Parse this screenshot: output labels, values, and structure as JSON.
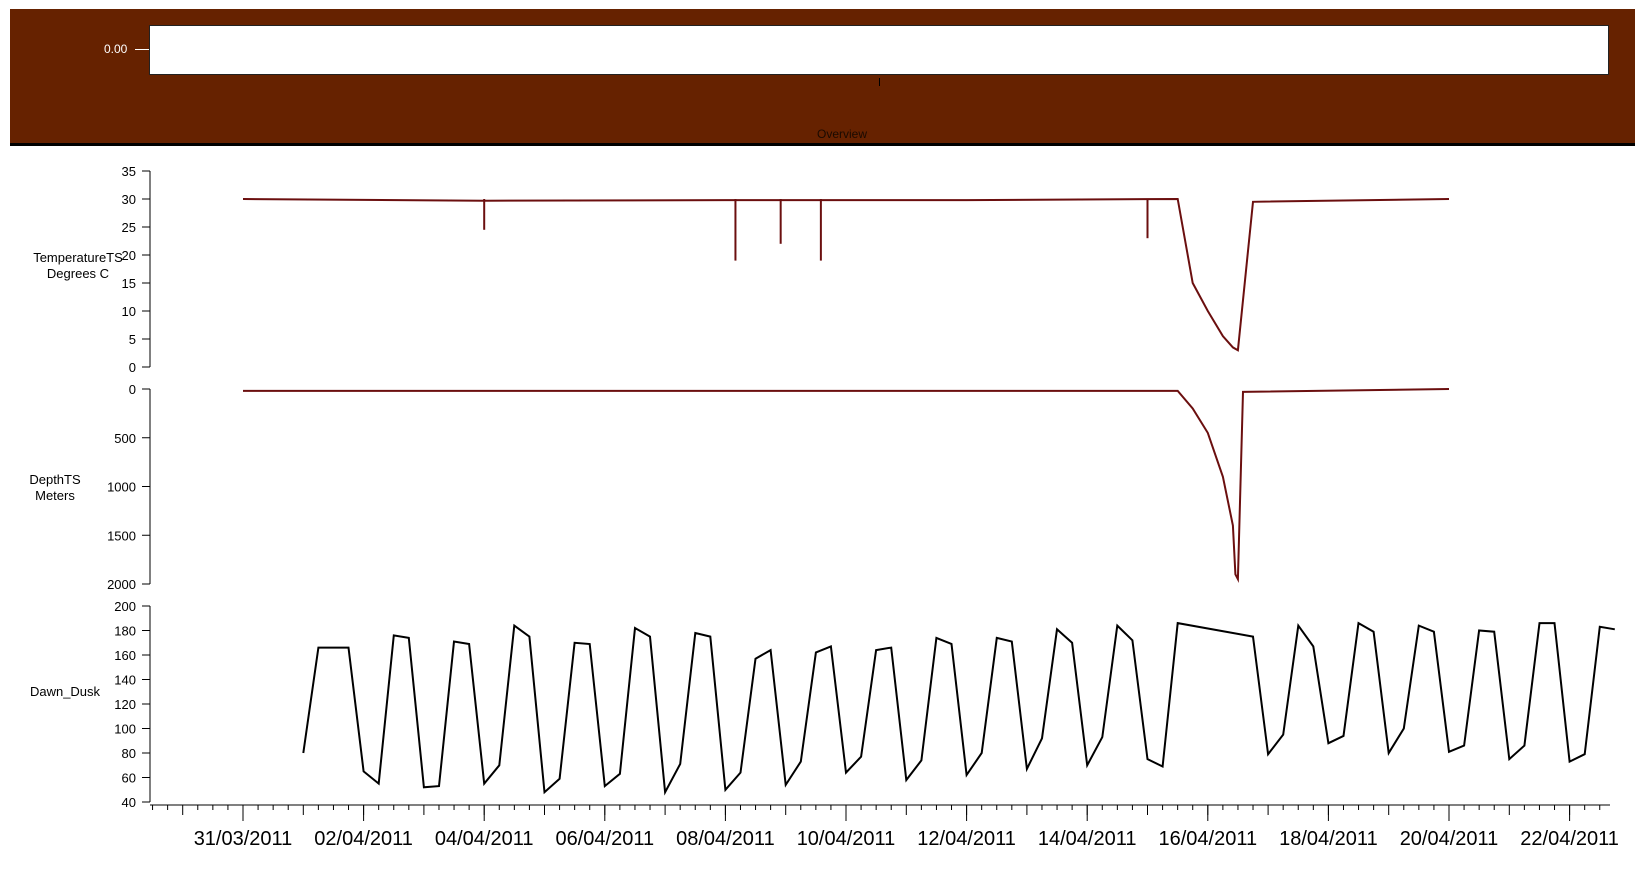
{
  "overview": {
    "zero_label": "0.00",
    "title": "Overview"
  },
  "chart_data": [
    {
      "type": "line",
      "ylabel": [
        "TemperatureTS",
        "Degrees C"
      ],
      "ylim": [
        0,
        35
      ],
      "yticks": [
        0,
        5,
        10,
        15,
        20,
        25,
        30,
        35
      ],
      "color": "#6b0f0f",
      "series": [
        {
          "x": [
            "2011-03-31T00:00",
            "2011-04-04T00:00",
            "2011-04-08T00:00",
            "2011-04-12T00:00",
            "2011-04-15T12:00",
            "2011-04-15T18:00",
            "2011-04-16T00:00",
            "2011-04-16T06:00",
            "2011-04-16T10:00",
            "2011-04-16T12:00",
            "2011-04-16T18:00",
            "2011-04-20T00:00"
          ],
          "values": [
            30,
            29.7,
            29.8,
            29.8,
            30,
            15,
            10,
            5.5,
            3.5,
            3,
            29.5,
            30
          ]
        }
      ],
      "spikes": [
        {
          "x": "2011-04-08T04:00",
          "value": 19
        },
        {
          "x": "2011-04-08T22:00",
          "value": 22
        },
        {
          "x": "2011-04-09T14:00",
          "value": 19
        },
        {
          "x": "2011-04-04T00:00",
          "value": 24.5
        },
        {
          "x": "2011-04-15T00:00",
          "value": 23
        }
      ]
    },
    {
      "type": "line",
      "ylabel": [
        "DepthTS",
        "Meters"
      ],
      "ylim": [
        0,
        2000
      ],
      "yticks": [
        0,
        500,
        1000,
        1500,
        2000
      ],
      "inverted": true,
      "color": "#6b0f0f",
      "series": [
        {
          "x": [
            "2011-03-31T00:00",
            "2011-04-15T12:00",
            "2011-04-15T18:00",
            "2011-04-16T00:00",
            "2011-04-16T06:00",
            "2011-04-16T10:00",
            "2011-04-16T11:00",
            "2011-04-16T12:00",
            "2011-04-16T14:00",
            "2011-04-20T00:00"
          ],
          "values": [
            20,
            20,
            200,
            450,
            900,
            1400,
            1900,
            1950,
            30,
            0
          ]
        }
      ]
    },
    {
      "type": "line",
      "ylabel": [
        "Dawn_Dusk"
      ],
      "ylim": [
        40,
        200
      ],
      "yticks": [
        40,
        60,
        80,
        100,
        120,
        140,
        160,
        180,
        200
      ],
      "color": "#000000",
      "x": [
        "2011-04-01T00:00",
        "2011-04-01T06:00",
        "2011-04-01T18:00",
        "2011-04-02T00:00",
        "2011-04-02T06:00",
        "2011-04-02T12:00",
        "2011-04-02T18:00",
        "2011-04-03T00:00",
        "2011-04-03T06:00",
        "2011-04-03T12:00",
        "2011-04-03T18:00",
        "2011-04-04T00:00",
        "2011-04-04T06:00",
        "2011-04-04T12:00",
        "2011-04-04T18:00",
        "2011-04-05T00:00",
        "2011-04-05T06:00",
        "2011-04-05T12:00",
        "2011-04-05T18:00",
        "2011-04-06T00:00",
        "2011-04-06T06:00",
        "2011-04-06T12:00",
        "2011-04-06T18:00",
        "2011-04-07T00:00",
        "2011-04-07T06:00",
        "2011-04-07T12:00",
        "2011-04-07T18:00",
        "2011-04-08T00:00",
        "2011-04-08T06:00",
        "2011-04-08T12:00",
        "2011-04-08T18:00",
        "2011-04-09T00:00",
        "2011-04-09T06:00",
        "2011-04-09T12:00",
        "2011-04-09T18:00",
        "2011-04-10T00:00",
        "2011-04-10T06:00",
        "2011-04-10T12:00",
        "2011-04-10T18:00",
        "2011-04-11T00:00",
        "2011-04-11T06:00",
        "2011-04-11T12:00",
        "2011-04-11T18:00",
        "2011-04-12T00:00",
        "2011-04-12T06:00",
        "2011-04-12T12:00",
        "2011-04-12T18:00",
        "2011-04-13T00:00",
        "2011-04-13T06:00",
        "2011-04-13T12:00",
        "2011-04-13T18:00",
        "2011-04-14T00:00",
        "2011-04-14T06:00",
        "2011-04-14T12:00",
        "2011-04-14T18:00",
        "2011-04-15T00:00",
        "2011-04-15T06:00",
        "2011-04-15T12:00",
        "2011-04-16T18:00",
        "2011-04-17T00:00",
        "2011-04-17T06:00",
        "2011-04-17T12:00",
        "2011-04-17T18:00",
        "2011-04-18T00:00",
        "2011-04-18T06:00",
        "2011-04-18T12:00",
        "2011-04-18T18:00",
        "2011-04-19T00:00",
        "2011-04-19T06:00",
        "2011-04-19T12:00",
        "2011-04-19T18:00",
        "2011-04-20T00:00",
        "2011-04-20T06:00",
        "2011-04-20T12:00",
        "2011-04-20T18:00",
        "2011-04-21T00:00",
        "2011-04-21T06:00",
        "2011-04-21T12:00",
        "2011-04-21T18:00",
        "2011-04-22T00:00",
        "2011-04-22T06:00",
        "2011-04-22T12:00",
        "2011-04-22T18:00"
      ],
      "values": [
        80,
        166,
        166,
        65,
        55,
        176,
        174,
        52,
        53,
        171,
        169,
        55,
        70,
        184,
        175,
        48,
        59,
        170,
        169,
        53,
        63,
        182,
        175,
        48,
        71,
        178,
        175,
        50,
        64,
        157,
        164,
        54,
        73,
        162,
        167,
        64,
        77,
        164,
        166,
        58,
        74,
        174,
        169,
        62,
        80,
        174,
        171,
        67,
        92,
        181,
        170,
        70,
        93,
        184,
        172,
        75,
        69,
        186,
        175,
        79,
        95,
        184,
        167,
        88,
        94,
        186,
        179,
        80,
        100,
        184,
        179,
        81,
        86,
        180,
        179,
        75,
        86,
        186,
        186,
        73,
        79,
        183,
        181
      ]
    }
  ],
  "x_axis": {
    "tick_labels": [
      "31/03/2011",
      "02/04/2011",
      "04/04/2011",
      "06/04/2011",
      "08/04/2011",
      "10/04/2011",
      "12/04/2011",
      "14/04/2011",
      "16/04/2011",
      "18/04/2011",
      "20/04/2011",
      "22/04/2011"
    ]
  }
}
